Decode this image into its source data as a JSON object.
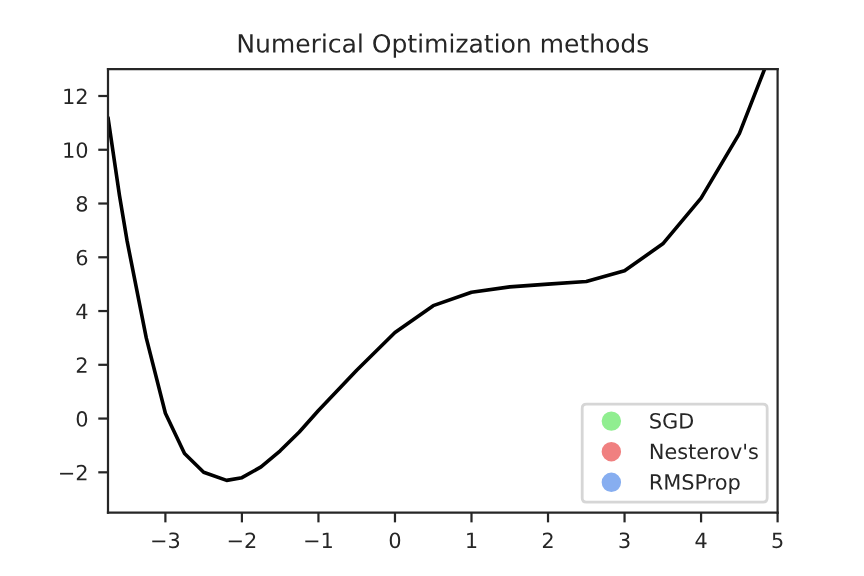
{
  "chart_data": {
    "type": "line",
    "title": "Numerical Optimization methods",
    "xlim": [
      -3.75,
      5
    ],
    "ylim": [
      -3.5,
      13
    ],
    "xticks": [
      -3,
      -2,
      -1,
      0,
      1,
      2,
      3,
      4,
      5
    ],
    "yticks": [
      -2,
      0,
      2,
      4,
      6,
      8,
      10,
      12
    ],
    "grid": false,
    "legend": "bottom right",
    "series": [
      {
        "color": "#000000",
        "x": [
          -3.75,
          -3.6,
          -3.5,
          -3.25,
          -3,
          -2.75,
          -2.5,
          -2.2,
          -2,
          -1.75,
          -1.5,
          -1.25,
          -1,
          -0.5,
          0,
          0.5,
          1,
          1.5,
          2,
          2.5,
          3,
          3.5,
          4,
          4.5,
          4.83
        ],
        "values": [
          11.2,
          8.3,
          6.6,
          3.0,
          0.2,
          -1.3,
          -2.0,
          -2.3,
          -2.2,
          -1.8,
          -1.2,
          -0.5,
          0.3,
          1.8,
          3.2,
          4.2,
          4.7,
          4.9,
          5.0,
          5.1,
          5.5,
          6.5,
          8.2,
          10.6,
          13
        ]
      },
      {
        "type": "scatter",
        "name": "SGD",
        "color": "#90ee90"
      },
      {
        "type": "scatter",
        "name": "Nesterov's",
        "color": "#f08080"
      },
      {
        "type": "scatter",
        "name": "RMSProp",
        "color": "#87aef0"
      }
    ]
  }
}
